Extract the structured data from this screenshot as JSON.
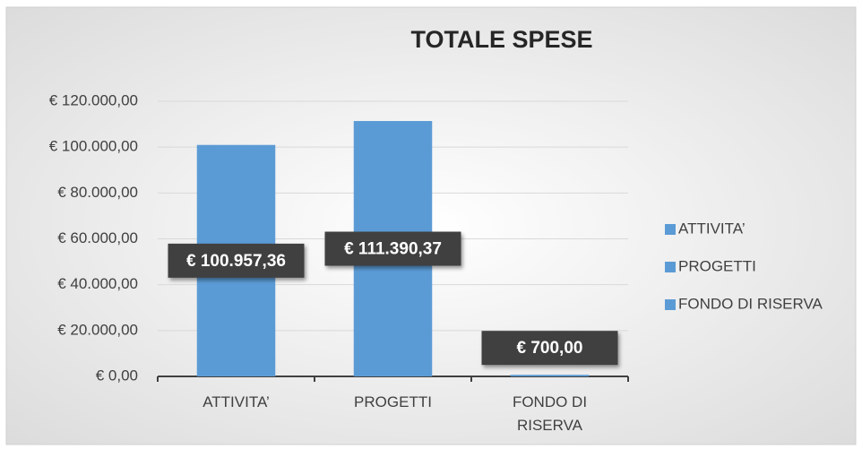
{
  "chart_data": {
    "type": "bar",
    "title": "TOTALE SPESE",
    "categories": [
      "ATTIVITA’",
      "PROGETTI",
      "FONDO DI RISERVA"
    ],
    "values": [
      100957.36,
      111390.37,
      700
    ],
    "value_labels": [
      "€ 100.957,36",
      "€ 111.390,37",
      "€ 700,00"
    ],
    "colors": [
      "#5b9bd5",
      "#5b9bd5",
      "#5b9bd5"
    ],
    "ylim": [
      0,
      120000
    ],
    "yticks": [
      {
        "value": 0,
        "label": "€ 0,00"
      },
      {
        "value": 20000,
        "label": "€ 20.000,00"
      },
      {
        "value": 40000,
        "label": "€ 40.000,00"
      },
      {
        "value": 60000,
        "label": "€ 60.000,00"
      },
      {
        "value": 80000,
        "label": "€ 80.000,00"
      },
      {
        "value": 100000,
        "label": "€ 100.000,00"
      },
      {
        "value": 120000,
        "label": "€ 120.000,00"
      }
    ],
    "grid": true,
    "legend": "right"
  }
}
